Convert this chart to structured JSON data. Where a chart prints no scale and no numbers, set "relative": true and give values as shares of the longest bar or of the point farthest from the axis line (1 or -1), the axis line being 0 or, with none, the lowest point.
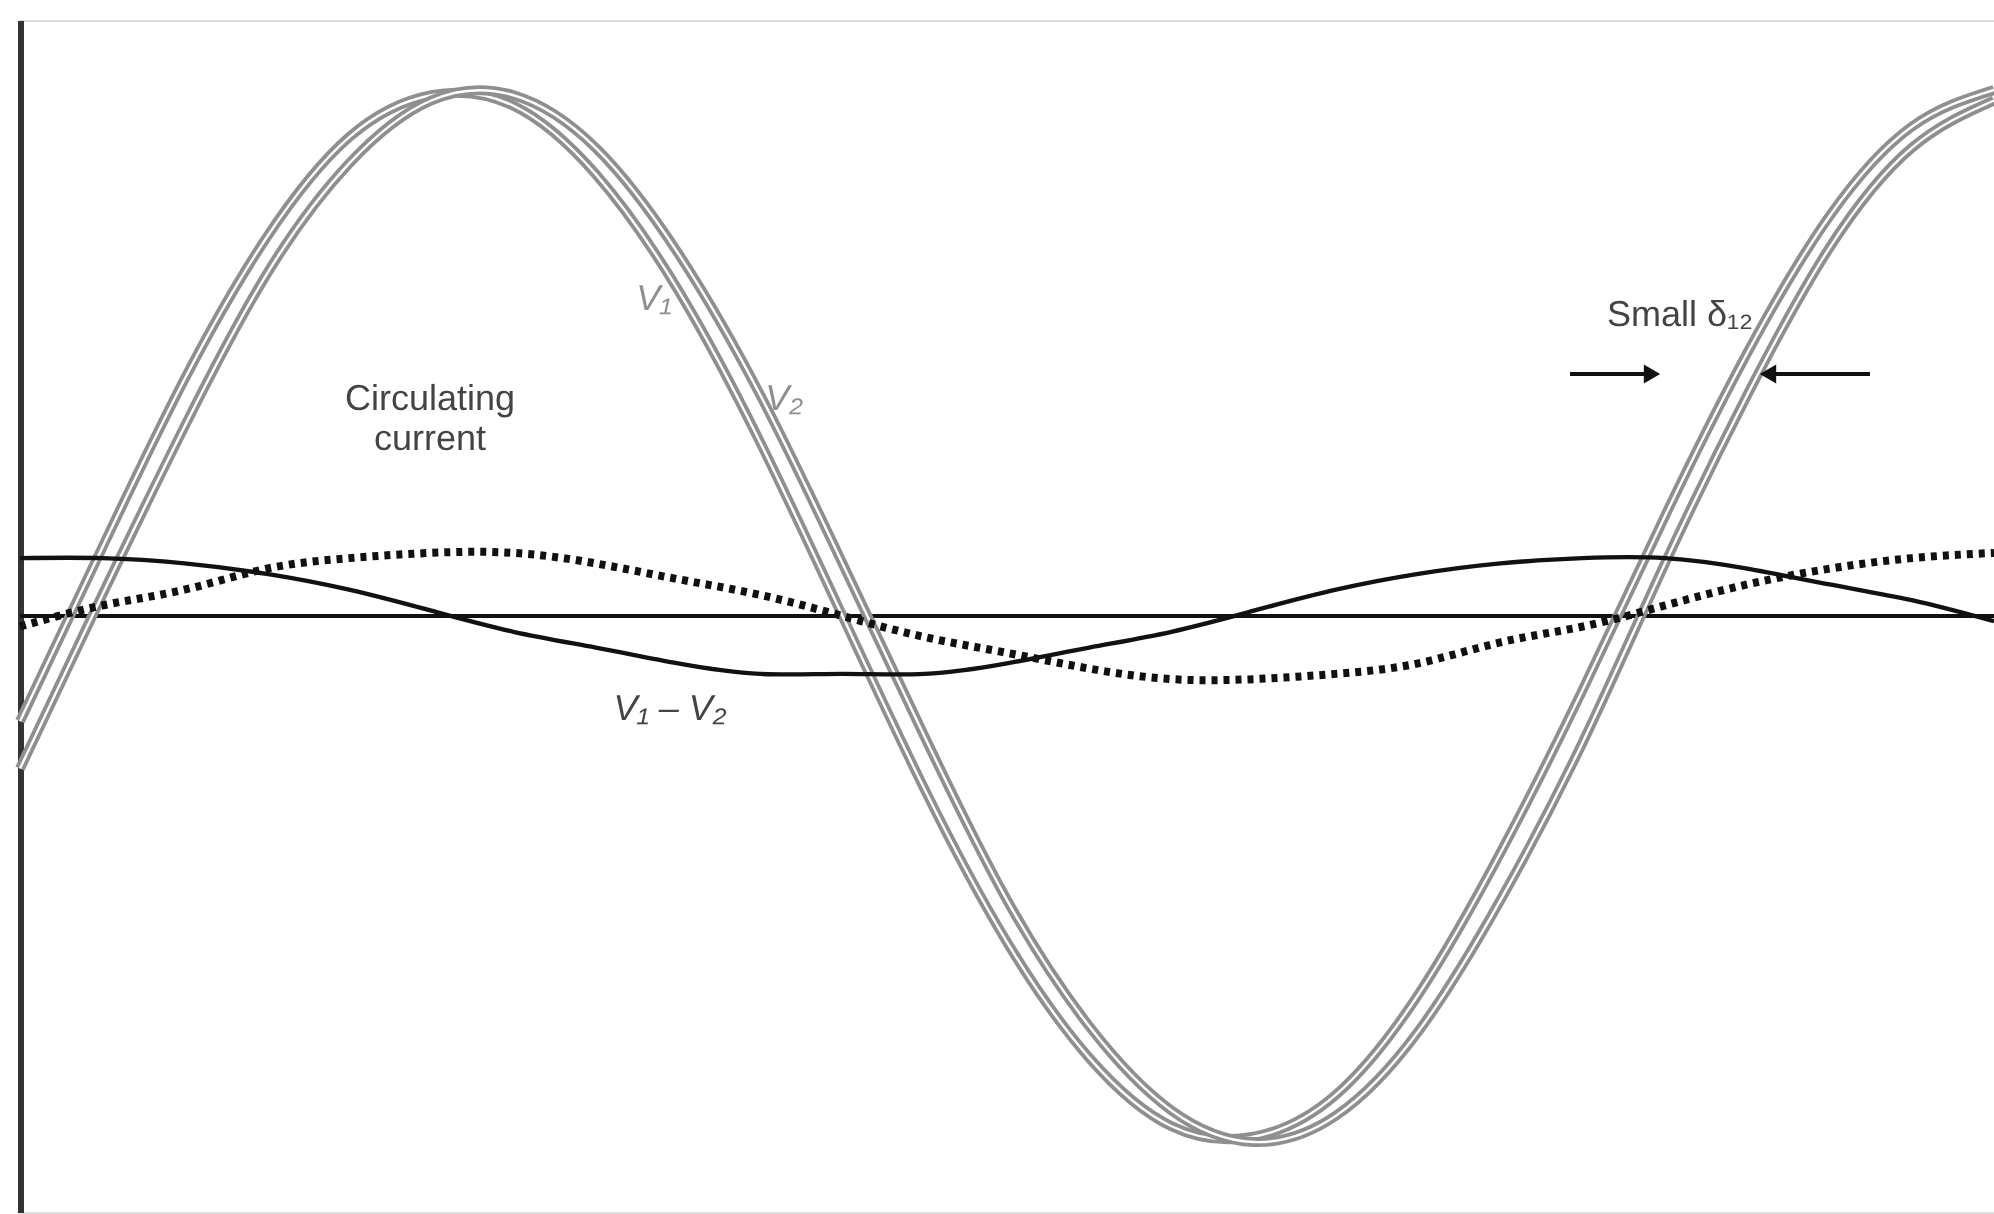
{
  "chart_data": {
    "type": "line",
    "relative": true,
    "categories": [
      null,
      null,
      null,
      null,
      null,
      null,
      null,
      null,
      null,
      null,
      null,
      null,
      null,
      null,
      null,
      null,
      null,
      null,
      null,
      null,
      null,
      null,
      null,
      null,
      null
    ],
    "series": [
      {
        "name": "V₁",
        "color": "#8f8f8f",
        "line_style": "solid",
        "values": [
          -0.2,
          0.13,
          0.45,
          0.72,
          0.91,
          0.99,
          0.97,
          0.84,
          0.62,
          0.33,
          0.0,
          -0.33,
          -0.62,
          -0.84,
          -0.97,
          -0.99,
          -0.91,
          -0.72,
          -0.45,
          -0.14,
          0.19,
          0.5,
          0.76,
          0.93,
          1.0
        ]
      },
      {
        "name": "V₂",
        "color": "#8f8f8f",
        "line_style": "solid",
        "values": [
          -0.29,
          0.04,
          0.36,
          0.65,
          0.86,
          0.98,
          0.99,
          0.89,
          0.69,
          0.42,
          0.1,
          -0.23,
          -0.54,
          -0.78,
          -0.94,
          -1.0,
          -0.95,
          -0.79,
          -0.54,
          -0.24,
          0.1,
          0.42,
          0.7,
          0.89,
          0.98
        ]
      },
      {
        "name": "V₁ – V₂",
        "color": "#111111",
        "line_style": "solid",
        "values": [
          0.11,
          0.11,
          0.1,
          0.08,
          0.05,
          0.01,
          -0.03,
          -0.06,
          -0.09,
          -0.11,
          -0.11,
          -0.11,
          -0.09,
          -0.06,
          -0.03,
          0.01,
          0.05,
          0.08,
          0.1,
          0.11,
          0.11,
          0.09,
          0.06,
          0.03,
          -0.01
        ]
      },
      {
        "name": "Circulating current",
        "color": "#111111",
        "line_style": "dotted",
        "values": [
          -0.02,
          0.02,
          0.05,
          0.09,
          0.11,
          0.12,
          0.12,
          0.1,
          0.07,
          0.04,
          0.0,
          -0.04,
          -0.07,
          -0.1,
          -0.12,
          -0.12,
          -0.11,
          -0.09,
          -0.05,
          -0.02,
          0.02,
          0.06,
          0.09,
          0.11,
          0.12
        ]
      }
    ],
    "annotations": [
      "Small δ₁₂"
    ]
  }
}
